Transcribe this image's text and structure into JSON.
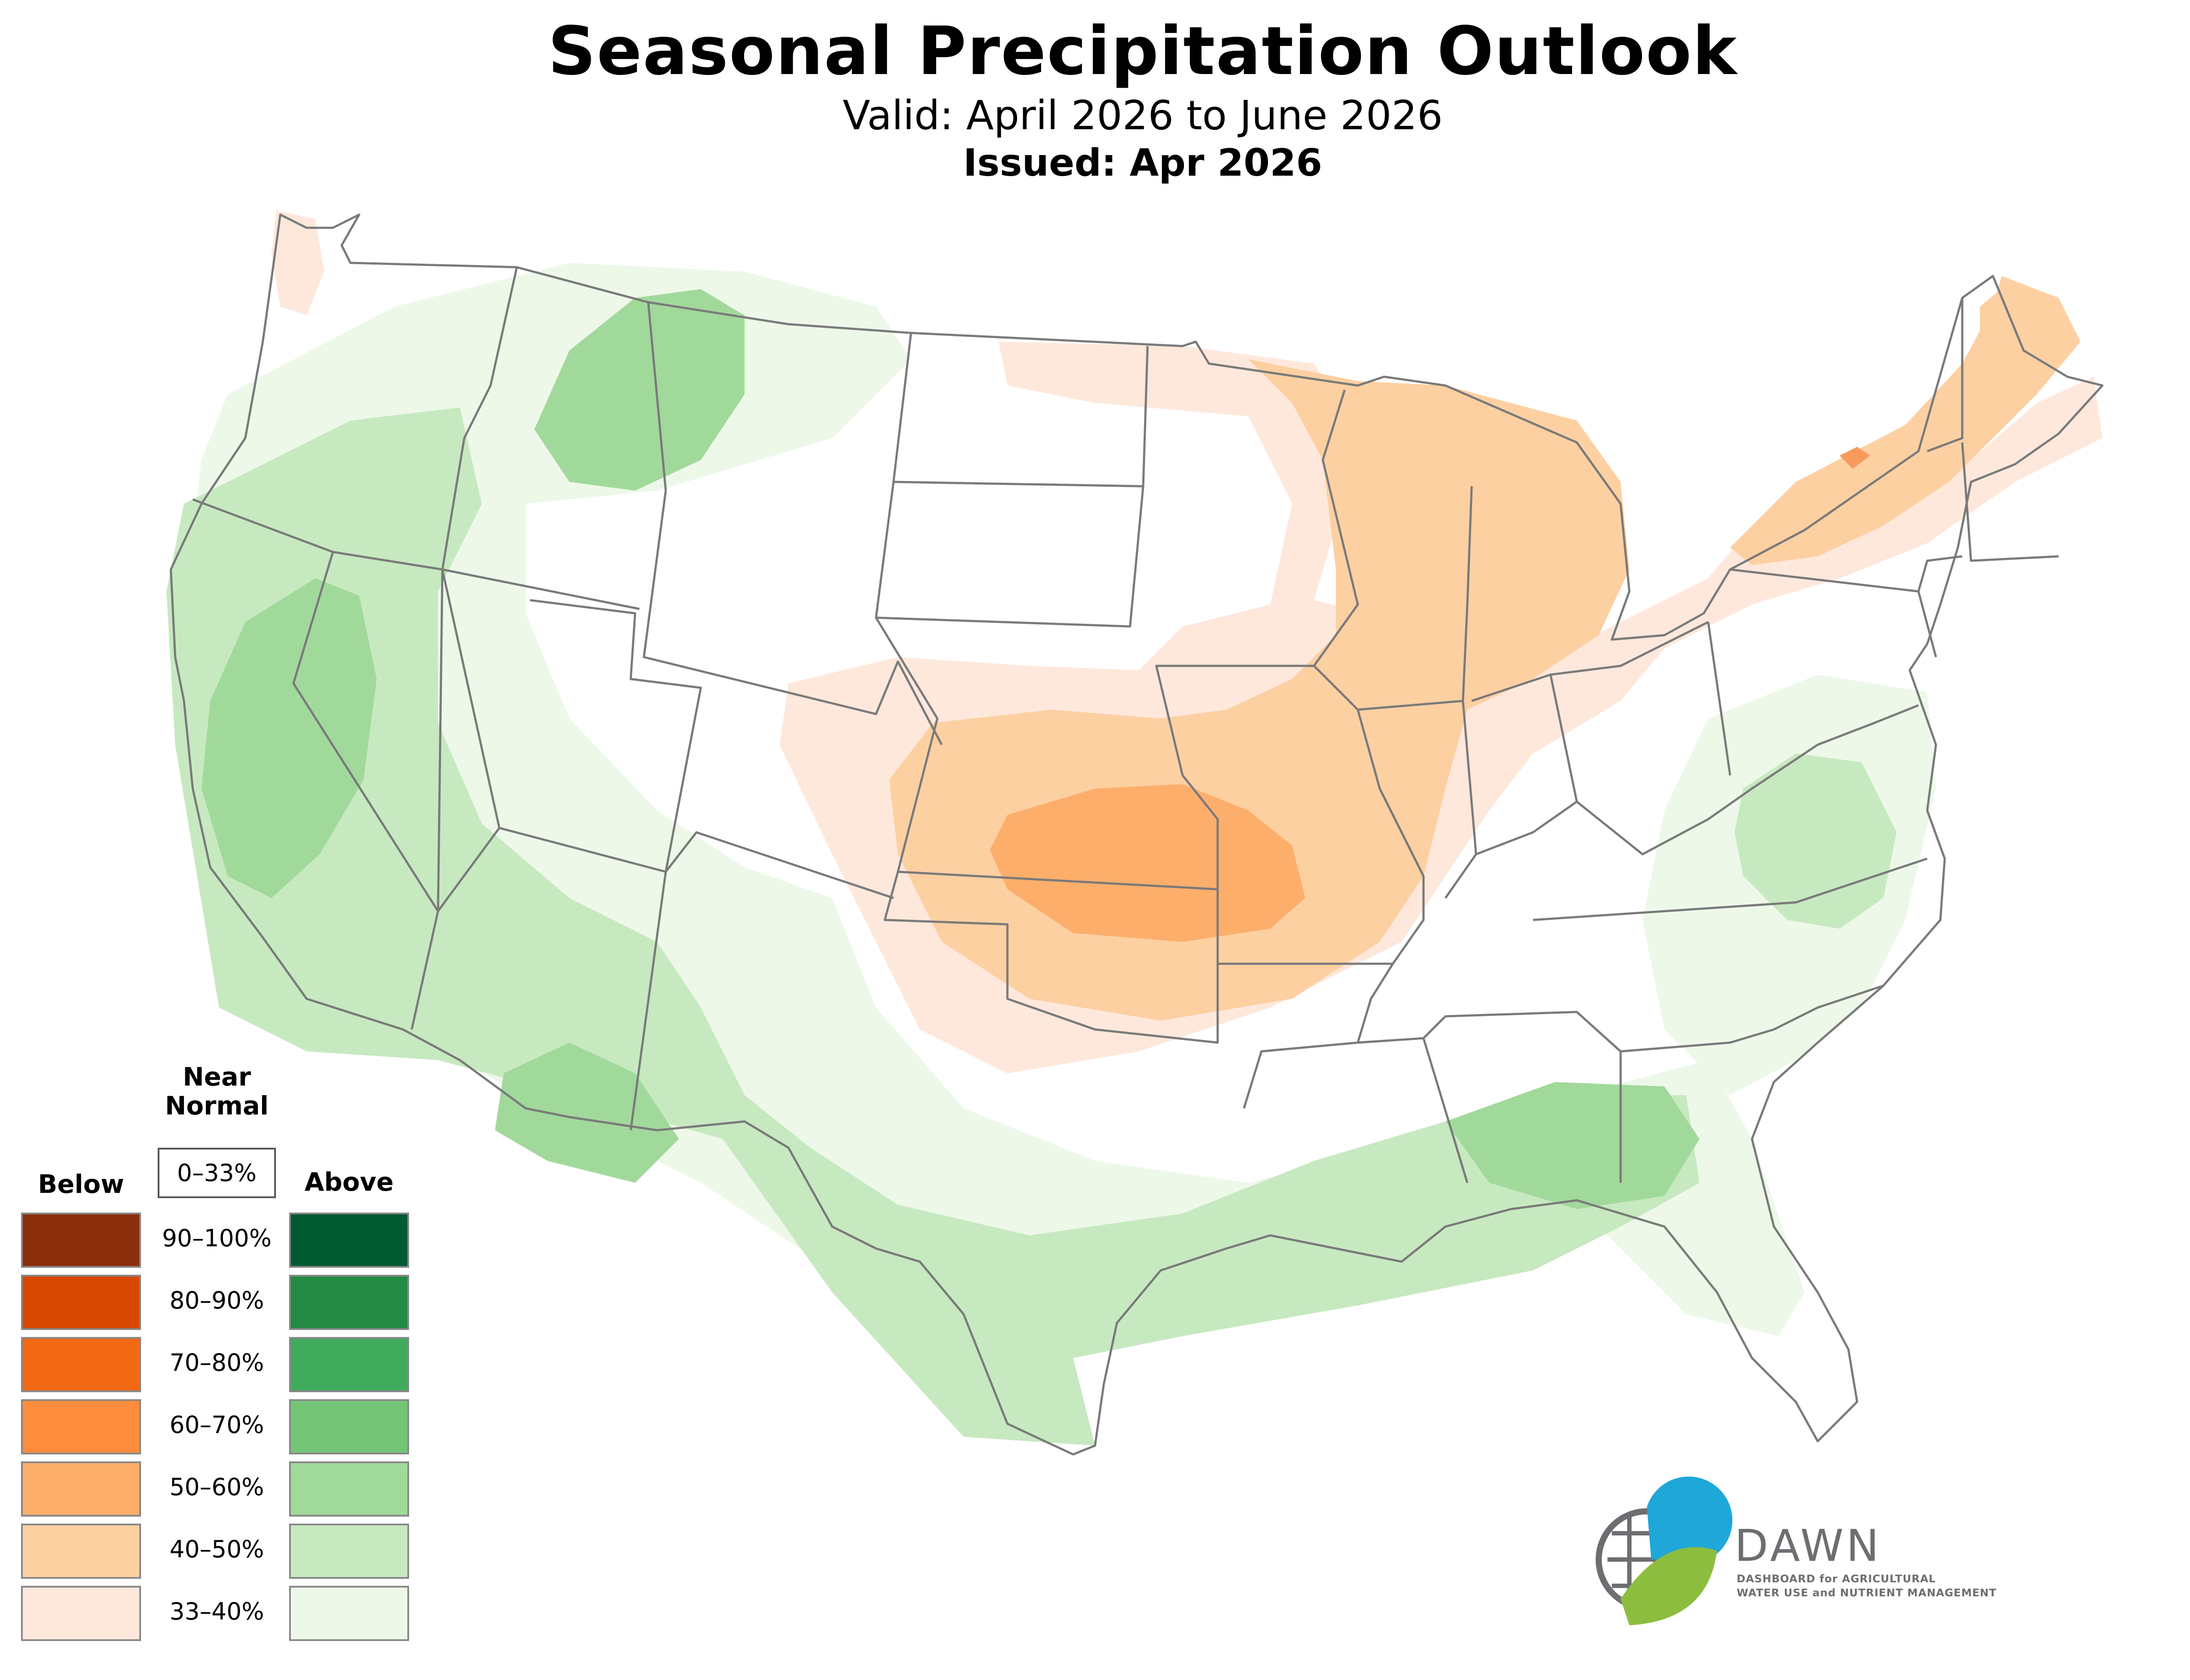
{
  "title": "Seasonal Precipitation Outlook",
  "valid": "Valid: April 2026 to June 2026",
  "issued": "Issued: Apr 2026",
  "legend": {
    "near_normal_label_line1": "Near",
    "near_normal_label_line2": "Normal",
    "near_normal_range": "0–33%",
    "below_label": "Below",
    "above_label": "Above",
    "ranges": [
      "90–100%",
      "80–90%",
      "70–80%",
      "60–70%",
      "50–60%",
      "40–50%",
      "33–40%"
    ],
    "below_colors": [
      "#8b2e0b",
      "#d94801",
      "#f16913",
      "#fd8d3c",
      "#fdae6b",
      "#fdd0a2",
      "#fee8dc"
    ],
    "above_colors": [
      "#005a32",
      "#238b45",
      "#41ab5d",
      "#74c476",
      "#a1d99b",
      "#c7e9c0",
      "#edf8e9"
    ]
  },
  "logo": {
    "name": "DAWN",
    "tagline_line1": "DASHBOARD for AGRICULTURAL",
    "tagline_line2": "WATER USE and NUTRIENT MANAGEMENT",
    "colors": {
      "blue": "#1ea7d8",
      "green": "#8cbd3f",
      "gray": "#6d6e71"
    }
  },
  "map_colors": {
    "below_33_40": "#fee8dc",
    "below_40_50": "#fdd0a2",
    "below_50_60": "#fdae6b",
    "above_33_40": "#edf8e9",
    "above_40_50": "#c7e9c0",
    "above_50_60": "#a1d99b",
    "state_border": "#7a7a7a"
  }
}
